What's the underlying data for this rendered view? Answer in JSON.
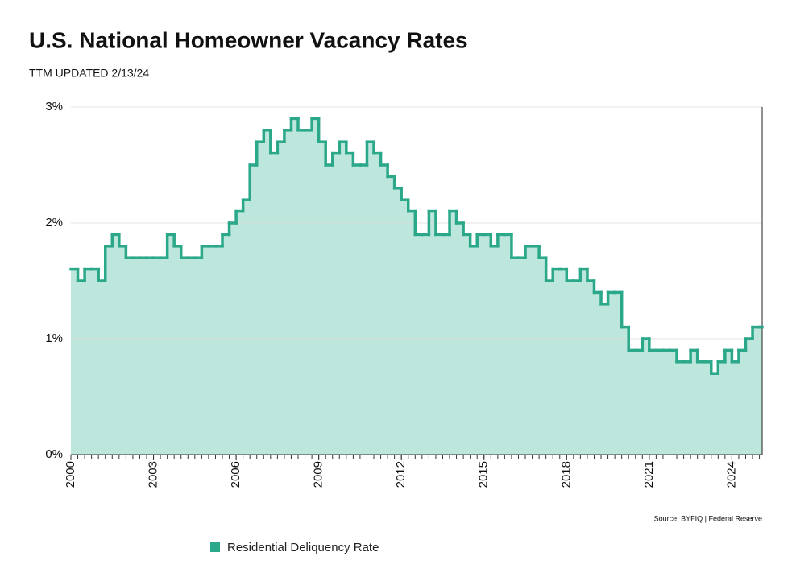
{
  "chart_data": {
    "type": "step",
    "title": "U.S. National Homeowner Vacancy Rates",
    "subtitle": "TTM  UPDATED 2/13/24",
    "source": "Source: BYFIQ | Federal Reserve",
    "xlim": [
      2000,
      2025.1
    ],
    "xticks": [
      2000,
      2003,
      2006,
      2009,
      2012,
      2015,
      2018,
      2021,
      2024
    ],
    "ylim": [
      0,
      3
    ],
    "yticks": [
      {
        "value": 0,
        "label": "0%"
      },
      {
        "value": 1,
        "label": "1%"
      },
      {
        "value": 2,
        "label": "2%"
      },
      {
        "value": 3,
        "label": "3%"
      }
    ],
    "grid": true,
    "x": [
      2000,
      2000.25,
      2000.5,
      2000.75,
      2001,
      2001.25,
      2001.5,
      2001.75,
      2002,
      2002.25,
      2002.5,
      2002.75,
      2003,
      2003.25,
      2003.5,
      2003.75,
      2004,
      2004.25,
      2004.5,
      2004.75,
      2005,
      2005.25,
      2005.5,
      2005.75,
      2006,
      2006.25,
      2006.5,
      2006.75,
      2007,
      2007.25,
      2007.5,
      2007.75,
      2008,
      2008.25,
      2008.5,
      2008.75,
      2009,
      2009.25,
      2009.5,
      2009.75,
      2010,
      2010.25,
      2010.5,
      2010.75,
      2011,
      2011.25,
      2011.5,
      2011.75,
      2012,
      2012.25,
      2012.5,
      2012.75,
      2013,
      2013.25,
      2013.5,
      2013.75,
      2014,
      2014.25,
      2014.5,
      2014.75,
      2015,
      2015.25,
      2015.5,
      2015.75,
      2016,
      2016.25,
      2016.5,
      2016.75,
      2017,
      2017.25,
      2017.5,
      2017.75,
      2018,
      2018.25,
      2018.5,
      2018.75,
      2019,
      2019.25,
      2019.5,
      2019.75,
      2020,
      2020.25,
      2020.5,
      2020.75,
      2021,
      2021.25,
      2021.5,
      2021.75,
      2022,
      2022.25,
      2022.5,
      2022.75,
      2023,
      2023.25,
      2023.5,
      2023.75,
      2024,
      2024.25,
      2024.5,
      2024.75,
      2025
    ],
    "series": [
      {
        "name": "Residential Deliquency Rate",
        "color": "#2aa889",
        "fill": "#bde7dc",
        "values": [
          1.6,
          1.5,
          1.6,
          1.6,
          1.5,
          1.8,
          1.9,
          1.8,
          1.7,
          1.7,
          1.7,
          1.7,
          1.7,
          1.7,
          1.9,
          1.8,
          1.7,
          1.7,
          1.7,
          1.8,
          1.8,
          1.8,
          1.9,
          2.0,
          2.1,
          2.2,
          2.5,
          2.7,
          2.8,
          2.6,
          2.7,
          2.8,
          2.9,
          2.8,
          2.8,
          2.9,
          2.7,
          2.5,
          2.6,
          2.7,
          2.6,
          2.5,
          2.5,
          2.7,
          2.6,
          2.5,
          2.4,
          2.3,
          2.2,
          2.1,
          1.9,
          1.9,
          2.1,
          1.9,
          1.9,
          2.1,
          2.0,
          1.9,
          1.8,
          1.9,
          1.9,
          1.8,
          1.9,
          1.9,
          1.7,
          1.7,
          1.8,
          1.8,
          1.7,
          1.5,
          1.6,
          1.6,
          1.5,
          1.5,
          1.6,
          1.5,
          1.4,
          1.3,
          1.4,
          1.4,
          1.1,
          0.9,
          0.9,
          1.0,
          0.9,
          0.9,
          0.9,
          0.9,
          0.8,
          0.8,
          0.9,
          0.8,
          0.8,
          0.7,
          0.8,
          0.9,
          0.8,
          0.9,
          1.0,
          1.1,
          1.1
        ]
      }
    ]
  }
}
